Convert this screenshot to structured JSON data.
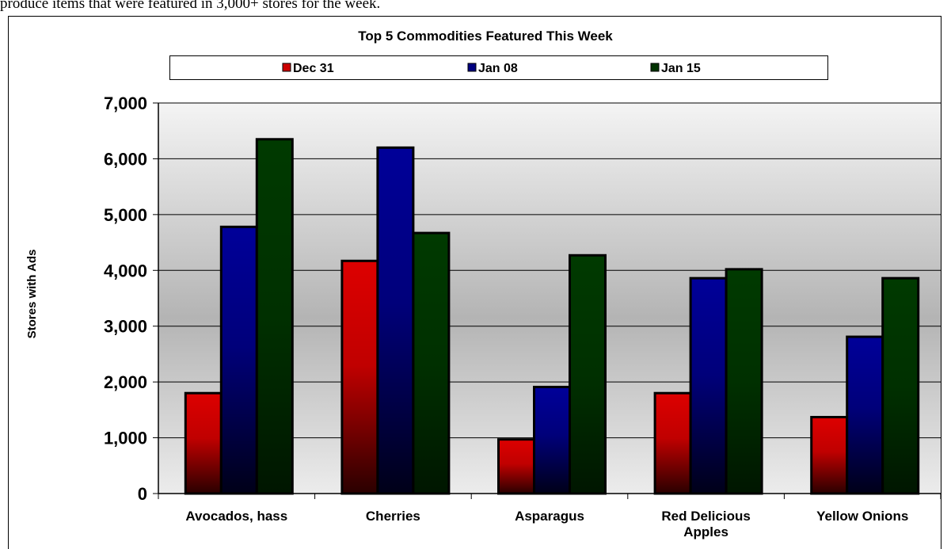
{
  "intro_text": "produce items that were featured in 3,000+ stores for the week.",
  "colors": {
    "dec31": "#cc0000",
    "jan08": "#000080",
    "jan15": "#003300"
  },
  "chart_data": {
    "type": "bar",
    "title": "Top 5 Commodities Featured This Week",
    "xlabel": "",
    "ylabel": "Stores with Ads",
    "ylim": [
      0,
      7000
    ],
    "yticks": [
      0,
      1000,
      2000,
      3000,
      4000,
      5000,
      6000,
      7000
    ],
    "ytick_labels": [
      "0",
      "1,000",
      "2,000",
      "3,000",
      "4,000",
      "5,000",
      "6,000",
      "7,000"
    ],
    "grid": true,
    "legend_position": "top",
    "categories": [
      [
        "Avocados, hass"
      ],
      [
        "Cherries"
      ],
      [
        "Asparagus"
      ],
      [
        "Red Delicious",
        "Apples"
      ],
      [
        "Yellow Onions"
      ]
    ],
    "series": [
      {
        "name": "Dec 31",
        "values": [
          1800,
          4170,
          970,
          1800,
          1370
        ]
      },
      {
        "name": "Jan 08",
        "values": [
          4780,
          6200,
          1910,
          3860,
          2810
        ]
      },
      {
        "name": "Jan 15",
        "values": [
          6350,
          4670,
          4270,
          4020,
          3860
        ]
      }
    ]
  }
}
